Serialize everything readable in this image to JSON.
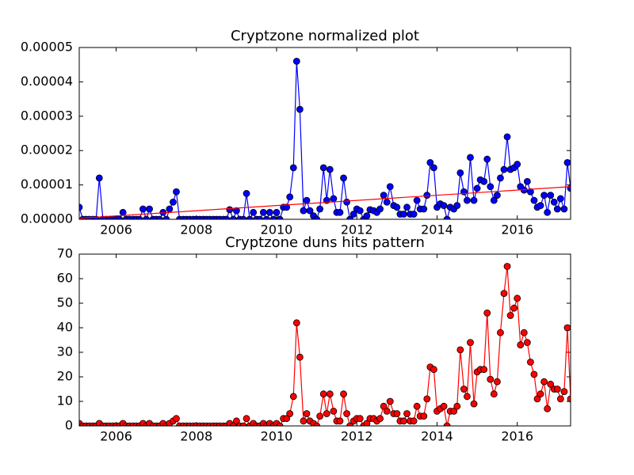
{
  "chart_data": [
    {
      "type": "line",
      "title": "Cryptzone normalized plot",
      "x": [
        2005.08,
        2005.17,
        2005.25,
        2005.33,
        2005.42,
        2005.5,
        2005.58,
        2005.67,
        2005.75,
        2005.83,
        2005.92,
        2006.0,
        2006.08,
        2006.17,
        2006.25,
        2006.33,
        2006.42,
        2006.5,
        2006.58,
        2006.67,
        2006.75,
        2006.83,
        2006.92,
        2007.0,
        2007.08,
        2007.17,
        2007.25,
        2007.33,
        2007.42,
        2007.5,
        2007.58,
        2007.67,
        2007.75,
        2007.83,
        2007.92,
        2008.0,
        2008.08,
        2008.17,
        2008.25,
        2008.33,
        2008.42,
        2008.5,
        2008.58,
        2008.67,
        2008.75,
        2008.83,
        2008.92,
        2009.0,
        2009.08,
        2009.17,
        2009.25,
        2009.33,
        2009.42,
        2009.5,
        2009.58,
        2009.67,
        2009.75,
        2009.83,
        2009.92,
        2010.0,
        2010.08,
        2010.17,
        2010.25,
        2010.33,
        2010.42,
        2010.5,
        2010.58,
        2010.67,
        2010.75,
        2010.83,
        2010.92,
        2011.0,
        2011.08,
        2011.17,
        2011.25,
        2011.33,
        2011.42,
        2011.5,
        2011.58,
        2011.67,
        2011.75,
        2011.83,
        2011.92,
        2012.0,
        2012.08,
        2012.17,
        2012.25,
        2012.33,
        2012.42,
        2012.5,
        2012.58,
        2012.67,
        2012.75,
        2012.83,
        2012.92,
        2013.0,
        2013.08,
        2013.17,
        2013.25,
        2013.33,
        2013.42,
        2013.5,
        2013.58,
        2013.67,
        2013.75,
        2013.83,
        2013.92,
        2014.0,
        2014.08,
        2014.17,
        2014.25,
        2014.33,
        2014.42,
        2014.5,
        2014.58,
        2014.67,
        2014.75,
        2014.83,
        2014.92,
        2015.0,
        2015.08,
        2015.17,
        2015.25,
        2015.33,
        2015.42,
        2015.5,
        2015.58,
        2015.67,
        2015.75,
        2015.83,
        2015.92,
        2016.0,
        2016.08,
        2016.17,
        2016.25,
        2016.33,
        2016.42,
        2016.5,
        2016.58,
        2016.67,
        2016.75,
        2016.83,
        2016.92,
        2017.0,
        2017.08,
        2017.17,
        2017.25,
        2017.33
      ],
      "series": [
        {
          "color": "#0000ff",
          "values": [
            3.5e-06,
            0,
            0,
            0,
            0,
            0,
            1.2e-05,
            0,
            0,
            0,
            0,
            0,
            0,
            2e-06,
            0,
            0,
            0,
            0,
            0,
            3e-06,
            0,
            3e-06,
            0,
            0,
            0,
            2e-06,
            0,
            3e-06,
            5e-06,
            8e-06,
            0,
            0,
            0,
            0,
            0,
            0,
            0,
            0,
            0,
            0,
            0,
            0,
            0,
            0,
            0,
            2.8e-06,
            0,
            2.5e-06,
            0,
            0,
            7.5e-06,
            0,
            2e-06,
            0,
            0,
            2e-06,
            0,
            2e-06,
            0,
            2e-06,
            0,
            3.5e-06,
            3.5e-06,
            6.5e-06,
            1.5e-05,
            4.6e-05,
            3.2e-05,
            2.5e-06,
            5.5e-06,
            2.5e-06,
            1e-06,
            0,
            3e-06,
            1.5e-05,
            5.5e-06,
            1.45e-05,
            6e-06,
            2e-06,
            2e-06,
            1.2e-05,
            5e-06,
            0,
            1.5e-06,
            3e-06,
            2.5e-06,
            0,
            1e-06,
            2.8e-06,
            2.5e-06,
            2e-06,
            3e-06,
            7e-06,
            5e-06,
            9.5e-06,
            4e-06,
            3.5e-06,
            1.5e-06,
            1.5e-06,
            3.5e-06,
            1.5e-06,
            1.5e-06,
            5.5e-06,
            3e-06,
            3e-06,
            7e-06,
            1.65e-05,
            1.5e-05,
            3.5e-06,
            4.5e-06,
            4e-06,
            0,
            3.5e-06,
            3e-06,
            4e-06,
            1.35e-05,
            8e-06,
            5.5e-06,
            1.8e-05,
            5.5e-06,
            9e-06,
            1.15e-05,
            1.1e-05,
            1.75e-05,
            9.5e-06,
            5.5e-06,
            7e-06,
            1.2e-05,
            1.45e-05,
            2.4e-05,
            1.45e-05,
            1.5e-05,
            1.6e-05,
            9.5e-06,
            8.5e-06,
            1.1e-05,
            8e-06,
            5.5e-06,
            3.5e-06,
            4e-06,
            7e-06,
            2e-06,
            7e-06,
            5e-06,
            3e-06,
            6e-06,
            3e-06,
            1.65e-05,
            9e-06
          ]
        }
      ],
      "trend": {
        "x": [
          2005.08,
          2017.33
        ],
        "values": [
          3e-07,
          9.5e-06
        ],
        "color": "#ff0000"
      },
      "xlim": [
        2005.08,
        2017.33
      ],
      "xticks": [
        2006,
        2008,
        2010,
        2012,
        2014,
        2016
      ],
      "ylim": [
        0,
        5e-05
      ],
      "yticks": [
        {
          "value": 0,
          "label": "0.00000"
        },
        {
          "value": 1e-05,
          "label": "0.00001"
        },
        {
          "value": 2e-05,
          "label": "0.00002"
        },
        {
          "value": 3e-05,
          "label": "0.00003"
        },
        {
          "value": 4e-05,
          "label": "0.00004"
        },
        {
          "value": 5e-05,
          "label": "0.00005"
        }
      ]
    },
    {
      "type": "line",
      "title": "Cryptzone duns hits pattern",
      "x": [
        2005.08,
        2005.17,
        2005.25,
        2005.33,
        2005.42,
        2005.5,
        2005.58,
        2005.67,
        2005.75,
        2005.83,
        2005.92,
        2006.0,
        2006.08,
        2006.17,
        2006.25,
        2006.33,
        2006.42,
        2006.5,
        2006.58,
        2006.67,
        2006.75,
        2006.83,
        2006.92,
        2007.0,
        2007.08,
        2007.17,
        2007.25,
        2007.33,
        2007.42,
        2007.5,
        2007.58,
        2007.67,
        2007.75,
        2007.83,
        2007.92,
        2008.0,
        2008.08,
        2008.17,
        2008.25,
        2008.33,
        2008.42,
        2008.5,
        2008.58,
        2008.67,
        2008.75,
        2008.83,
        2008.92,
        2009.0,
        2009.08,
        2009.17,
        2009.25,
        2009.33,
        2009.42,
        2009.5,
        2009.58,
        2009.67,
        2009.75,
        2009.83,
        2009.92,
        2010.0,
        2010.08,
        2010.17,
        2010.25,
        2010.33,
        2010.42,
        2010.5,
        2010.58,
        2010.67,
        2010.75,
        2010.83,
        2010.92,
        2011.0,
        2011.08,
        2011.17,
        2011.25,
        2011.33,
        2011.42,
        2011.5,
        2011.58,
        2011.67,
        2011.75,
        2011.83,
        2011.92,
        2012.0,
        2012.08,
        2012.17,
        2012.25,
        2012.33,
        2012.42,
        2012.5,
        2012.58,
        2012.67,
        2012.75,
        2012.83,
        2012.92,
        2013.0,
        2013.08,
        2013.17,
        2013.25,
        2013.33,
        2013.42,
        2013.5,
        2013.58,
        2013.67,
        2013.75,
        2013.83,
        2013.92,
        2014.0,
        2014.08,
        2014.17,
        2014.25,
        2014.33,
        2014.42,
        2014.5,
        2014.58,
        2014.67,
        2014.75,
        2014.83,
        2014.92,
        2015.0,
        2015.08,
        2015.17,
        2015.25,
        2015.33,
        2015.42,
        2015.5,
        2015.58,
        2015.67,
        2015.75,
        2015.83,
        2015.92,
        2016.0,
        2016.08,
        2016.17,
        2016.25,
        2016.33,
        2016.42,
        2016.5,
        2016.58,
        2016.67,
        2016.75,
        2016.83,
        2016.92,
        2017.0,
        2017.08,
        2017.17,
        2017.25,
        2017.33
      ],
      "series": [
        {
          "color": "#ff0000",
          "values": [
            1,
            0,
            0,
            0,
            0,
            0,
            1,
            0,
            0,
            0,
            0,
            0,
            0,
            1,
            0,
            0,
            0,
            0,
            0,
            1,
            0,
            1,
            0,
            0,
            0,
            1,
            0,
            1,
            2,
            3,
            0,
            0,
            0,
            0,
            0,
            0,
            0,
            0,
            0,
            0,
            0,
            0,
            0,
            0,
            0,
            1,
            0,
            2,
            0,
            0,
            3,
            0,
            1,
            0,
            0,
            1,
            0,
            1,
            0,
            1,
            0,
            3,
            3,
            5,
            12,
            42,
            28,
            2,
            5,
            2,
            1,
            0,
            4,
            13,
            5,
            13,
            6,
            2,
            2,
            13,
            5,
            0,
            2,
            3,
            3,
            0,
            1,
            3,
            3,
            2,
            3,
            8,
            6,
            10,
            5,
            5,
            2,
            2,
            5,
            2,
            2,
            8,
            4,
            4,
            11,
            24,
            23,
            6,
            7,
            8,
            0,
            6,
            6,
            8,
            31,
            15,
            12,
            34,
            9,
            22,
            23,
            23,
            46,
            19,
            13,
            18,
            38,
            54,
            65,
            45,
            48,
            52,
            33,
            38,
            34,
            26,
            21,
            11,
            13,
            18,
            7,
            17,
            15,
            15,
            11,
            14,
            40,
            11
          ]
        }
      ],
      "xlim": [
        2005.08,
        2017.33
      ],
      "xticks": [
        2006,
        2008,
        2010,
        2012,
        2014,
        2016
      ],
      "ylim": [
        0,
        70
      ],
      "yticks": [
        0,
        10,
        20,
        30,
        40,
        50,
        60,
        70
      ]
    }
  ]
}
